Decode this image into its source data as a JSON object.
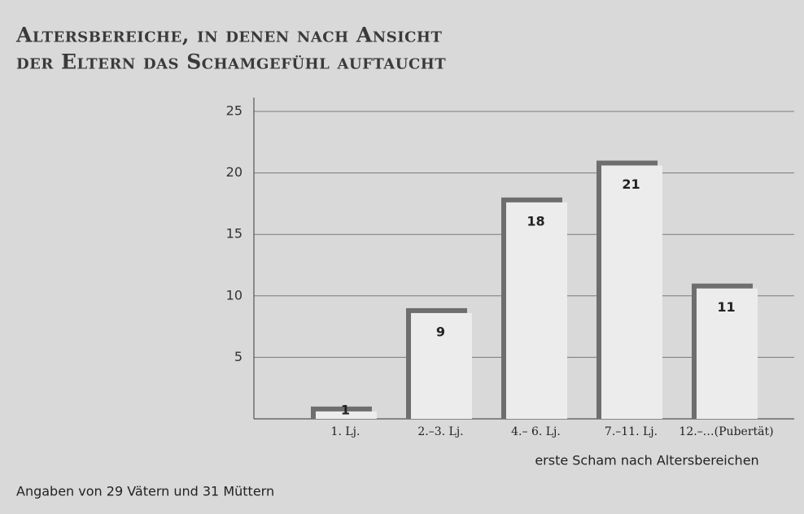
{
  "chart_data": {
    "type": "bar",
    "title": [
      "Altersbereiche, in denen nach Ansicht",
      "der Eltern das Schamgefühl auftaucht"
    ],
    "x_label": "erste Scham nach Altersbereichen",
    "note": "Angaben von 29 Vätern und 31 Müttern",
    "categories": [
      "1. Lj.",
      "2.–3. Lj.",
      "4.– 6. Lj.",
      "7.–11. Lj.",
      "12.–…(Pubertät)"
    ],
    "values": [
      1,
      9,
      18,
      21,
      11
    ],
    "color": "#ececec",
    "shadow_color": "#6e6e6e",
    "ylim": [
      0,
      25
    ],
    "yticks": [
      5,
      10,
      15,
      20,
      25
    ],
    "grid": true
  }
}
